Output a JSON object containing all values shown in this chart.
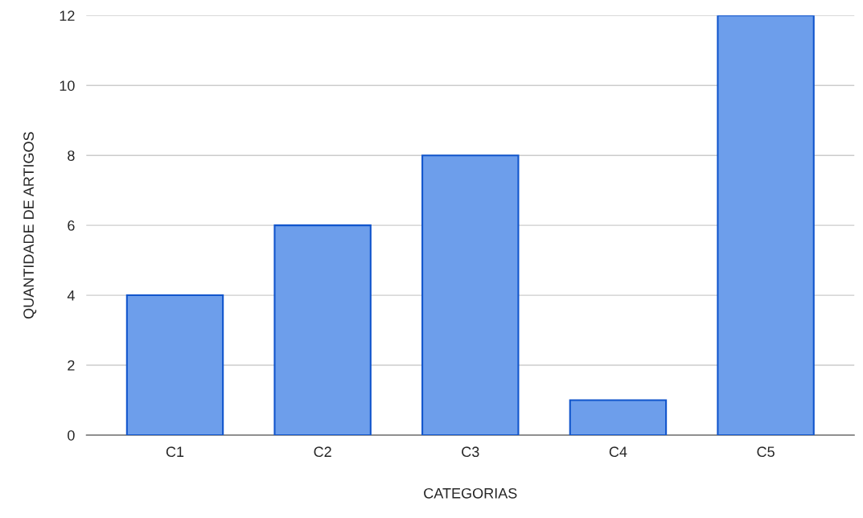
{
  "chart_data": {
    "type": "bar",
    "xlabel": "CATEGORIAS",
    "ylabel": "QUANTIDADE DE ARTIGOS",
    "categories": [
      "C1",
      "C2",
      "C3",
      "C4",
      "C5"
    ],
    "values": [
      4,
      6,
      8,
      1,
      12
    ],
    "color": "#6d9eeb",
    "ylim": [
      0,
      12
    ],
    "yticks": [
      0,
      2,
      4,
      6,
      8,
      10,
      12
    ],
    "grid": "y"
  }
}
